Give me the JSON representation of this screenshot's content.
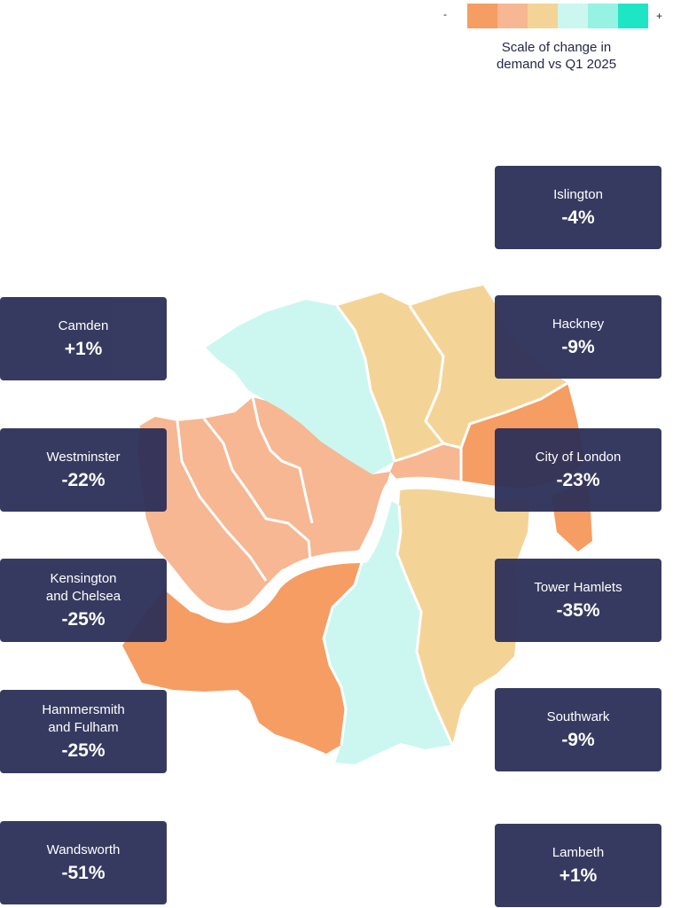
{
  "legend": {
    "minus": "-",
    "plus": "+",
    "title_line1": "Scale of change in",
    "title_line2": "demand vs Q1 2025",
    "colors": [
      "#f59d63",
      "#f6b792",
      "#f4d496",
      "#cbf7f0",
      "#96f2e2",
      "#1ee6c5"
    ]
  },
  "colors": {
    "card_bg": "#2d3058",
    "orange": "#f59d63",
    "peach": "#f6b792",
    "tan": "#f4d496",
    "pale_cyan": "#cbf7f0",
    "river": "#ffffff"
  },
  "boroughs": {
    "islington": {
      "name": "Islington",
      "value": "-4%"
    },
    "camden": {
      "name": "Camden",
      "value": "+1%"
    },
    "hackney": {
      "name": "Hackney",
      "value": "-9%"
    },
    "westminster": {
      "name": "Westminster",
      "value": "-22%"
    },
    "city_of_london": {
      "name": "City of London",
      "value": "-23%"
    },
    "kensington": {
      "name_line1": "Kensington",
      "name_line2": "and Chelsea",
      "value": "-25%"
    },
    "tower_hamlets": {
      "name": "Tower Hamlets",
      "value": "-35%"
    },
    "hammersmith": {
      "name_line1": "Hammersmith",
      "name_line2": "and Fulham",
      "value": "-25%"
    },
    "southwark": {
      "name": "Southwark",
      "value": "-9%"
    },
    "wandsworth": {
      "name": "Wandsworth",
      "value": "-51%"
    },
    "lambeth": {
      "name": "Lambeth",
      "value": "+1%"
    }
  }
}
